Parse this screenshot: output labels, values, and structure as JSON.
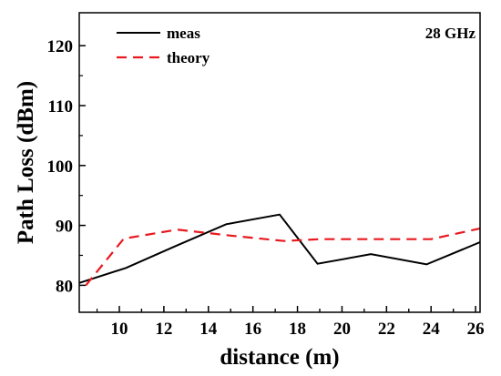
{
  "chart_data": {
    "type": "line",
    "title": "",
    "xlabel": "distance (m)",
    "ylabel": "Path Loss (dBm)",
    "xlim": [
      8.2,
      26.2
    ],
    "ylim": [
      75.5,
      125.5
    ],
    "xticks": [
      10,
      12,
      14,
      16,
      18,
      20,
      22,
      24,
      26
    ],
    "yticks": [
      80,
      90,
      100,
      110,
      120
    ],
    "grid": false,
    "legend_position": "top-left",
    "annotation": "28 GHz",
    "series": [
      {
        "name": "meas",
        "color": "#000000",
        "dash": "solid",
        "x": [
          8.2,
          10.3,
          12.5,
          14.8,
          17.2,
          18.9,
          21.3,
          23.8,
          26.2
        ],
        "y": [
          80.4,
          82.9,
          86.5,
          90.2,
          91.8,
          83.6,
          85.2,
          83.5,
          87.2
        ]
      },
      {
        "name": "theory",
        "color": "#e8191f",
        "dash": "dashed",
        "x": [
          8.5,
          10.2,
          12.6,
          15.0,
          17.4,
          19.0,
          21.5,
          24.0,
          26.2
        ],
        "y": [
          80.0,
          87.8,
          89.3,
          88.3,
          87.4,
          87.7,
          87.7,
          87.7,
          89.5
        ]
      }
    ]
  }
}
